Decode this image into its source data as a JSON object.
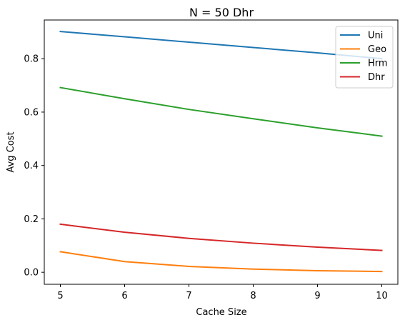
{
  "chart_data": {
    "type": "line",
    "title": "N = 50 Dhr",
    "xlabel": "Cache Size",
    "ylabel": "Avg Cost",
    "x": [
      5,
      6,
      7,
      8,
      9,
      10
    ],
    "xlim": [
      4.75,
      10.25
    ],
    "ylim": [
      -0.045,
      0.945
    ],
    "xticks": [
      5,
      6,
      7,
      8,
      9,
      10
    ],
    "yticks": [
      0.0,
      0.2,
      0.4,
      0.6,
      0.8
    ],
    "ytick_labels": [
      "0.0",
      "0.2",
      "0.4",
      "0.6",
      "0.8"
    ],
    "grid": false,
    "legend_position": "top-right",
    "series": [
      {
        "name": "Uni",
        "color": "#1f77b4",
        "values": [
          0.902,
          0.882,
          0.862,
          0.842,
          0.822,
          0.8
        ]
      },
      {
        "name": "Geo",
        "color": "#ff7f0e",
        "values": [
          0.077,
          0.04,
          0.022,
          0.012,
          0.006,
          0.003
        ]
      },
      {
        "name": "Hrm",
        "color": "#2ca02c",
        "values": [
          0.692,
          0.65,
          0.61,
          0.575,
          0.541,
          0.51
        ]
      },
      {
        "name": "Dhr",
        "color": "#d62728",
        "values": [
          0.18,
          0.15,
          0.127,
          0.109,
          0.094,
          0.082
        ]
      }
    ]
  }
}
